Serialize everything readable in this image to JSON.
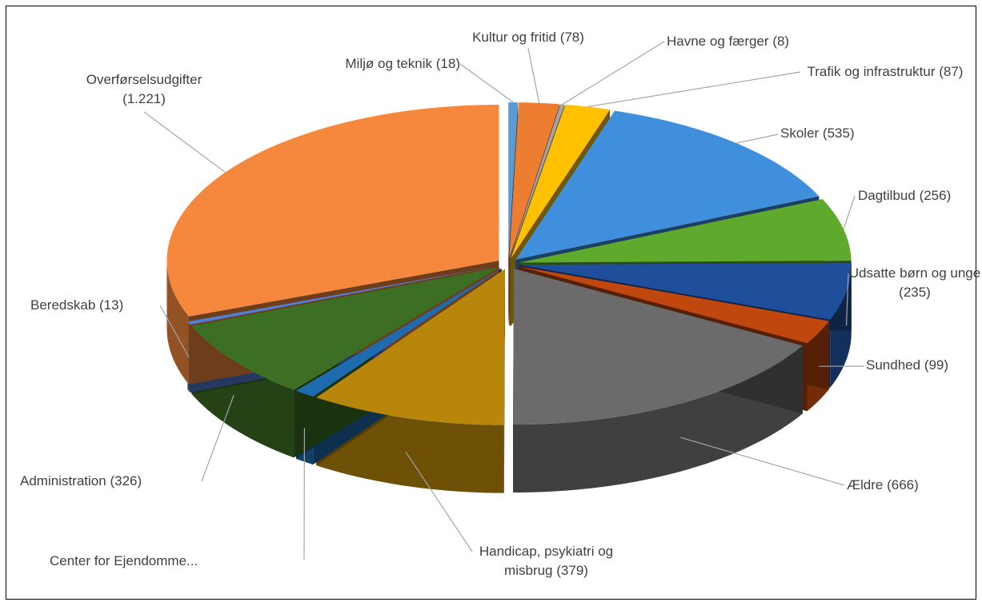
{
  "chart_data": {
    "type": "pie3d",
    "categories": [
      "Miljø og teknik",
      "Kultur og fritid",
      "Havne og færger",
      "Trafik og infrastruktur",
      "Skoler",
      "Dagtilbud",
      "Udsatte børn og unge",
      "Sundhed",
      "Ældre",
      "Handicap, psykiatri og misbrug",
      "Center for Ejendomme...",
      "Administration",
      "Beredskab",
      "Overførselsudgifter"
    ],
    "values": [
      18,
      78,
      8,
      87,
      535,
      256,
      235,
      99,
      666,
      379,
      40,
      326,
      13,
      1221
    ],
    "value_labels": [
      "(18)",
      "(78)",
      "(8)",
      "(87)",
      "(535)",
      "(256)",
      "(235)",
      "(99)",
      "(666)",
      "(379)",
      null,
      "(326)",
      "(13)",
      "(1.221)"
    ],
    "colors": [
      "#5b9bd5",
      "#ed7d31",
      "#a5a5a5",
      "#ffc000",
      "#3f8fdc",
      "#5faa2c",
      "#1f4e9a",
      "#c0480e",
      "#6b6b6b",
      "#b8860b",
      "#1f6bb0",
      "#3c6e23",
      "#4f7fd6",
      "#f5883c"
    ]
  }
}
